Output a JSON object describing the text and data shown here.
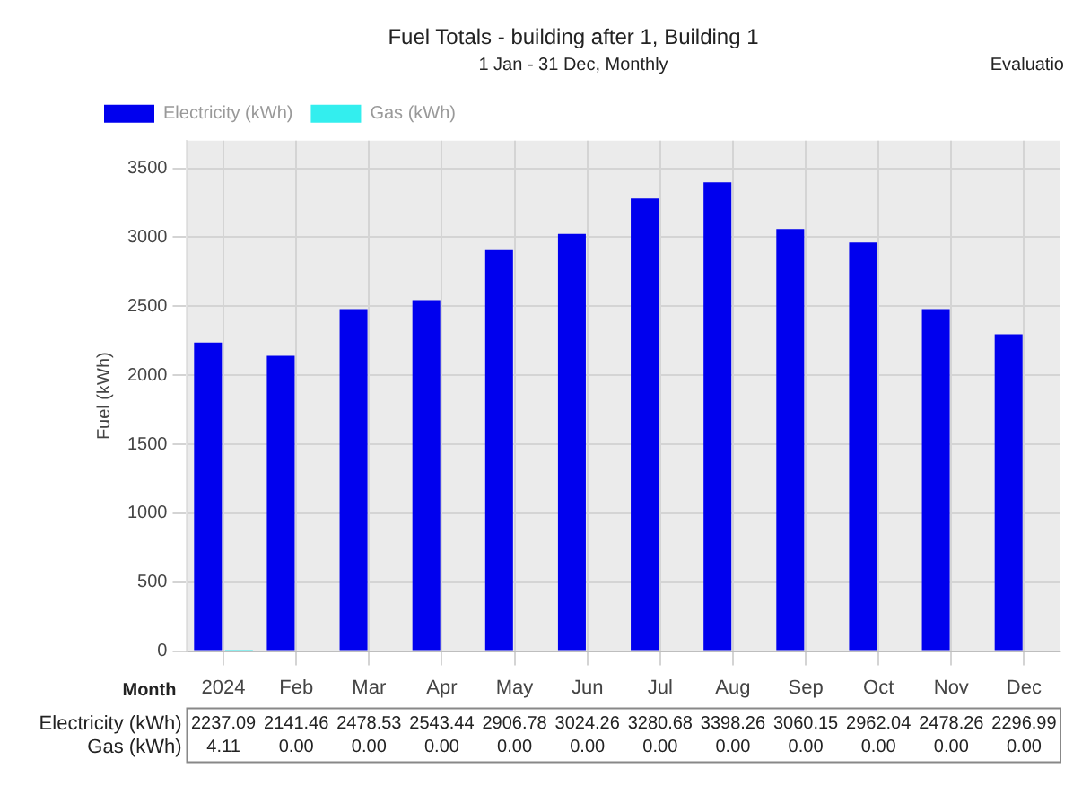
{
  "chart_data": {
    "type": "bar",
    "title": "Fuel Totals - building after 1, Building 1",
    "subtitle": "1 Jan - 31 Dec, Monthly",
    "xlabel": "Month",
    "ylabel": "Fuel (kWh)",
    "annotations": [
      "Evaluatio"
    ],
    "categories": [
      "2024",
      "Feb",
      "Mar",
      "Apr",
      "May",
      "Jun",
      "Jul",
      "Aug",
      "Sep",
      "Oct",
      "Nov",
      "Dec"
    ],
    "series": [
      {
        "name": "Electricity (kWh)",
        "color": "#0000ee",
        "values": [
          2237.09,
          2141.46,
          2478.53,
          2543.44,
          2906.78,
          3024.26,
          3280.68,
          3398.26,
          3060.15,
          2962.04,
          2478.26,
          2296.99
        ],
        "value_labels": [
          "2237.09",
          "2141.46",
          "2478.53",
          "2543.44",
          "2906.78",
          "3024.26",
          "3280.68",
          "3398.26",
          "3060.15",
          "2962.04",
          "2478.26",
          "2296.99"
        ]
      },
      {
        "name": "Gas (kWh)",
        "color": "#33eeee",
        "values": [
          4.11,
          0,
          0,
          0,
          0,
          0,
          0,
          0,
          0,
          0,
          0,
          0
        ],
        "value_labels": [
          "4.11",
          "0.00",
          "0.00",
          "0.00",
          "0.00",
          "0.00",
          "0.00",
          "0.00",
          "0.00",
          "0.00",
          "0.00",
          "0.00"
        ]
      }
    ],
    "ylim": [
      0,
      3700
    ],
    "yticks": [
      0,
      500,
      1000,
      1500,
      2000,
      2500,
      3000,
      3500
    ],
    "grid": true,
    "legend": "top left"
  }
}
